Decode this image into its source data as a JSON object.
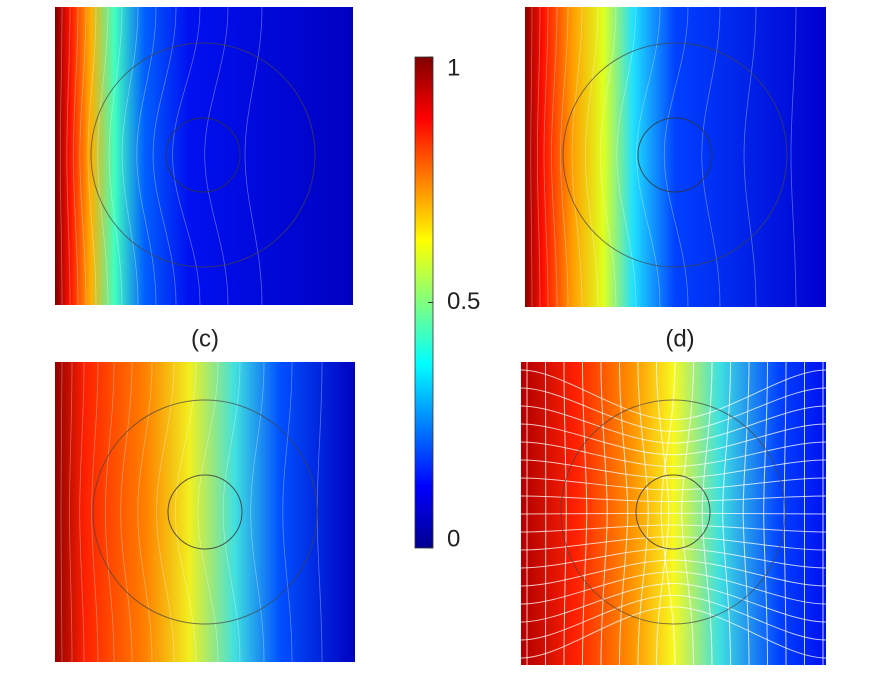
{
  "panels": [
    {
      "label": "(c)"
    },
    {
      "label": "(d)"
    }
  ],
  "colorbar": {
    "lim": [
      0,
      1
    ],
    "ticks": [
      0,
      0.5,
      1
    ]
  }
}
